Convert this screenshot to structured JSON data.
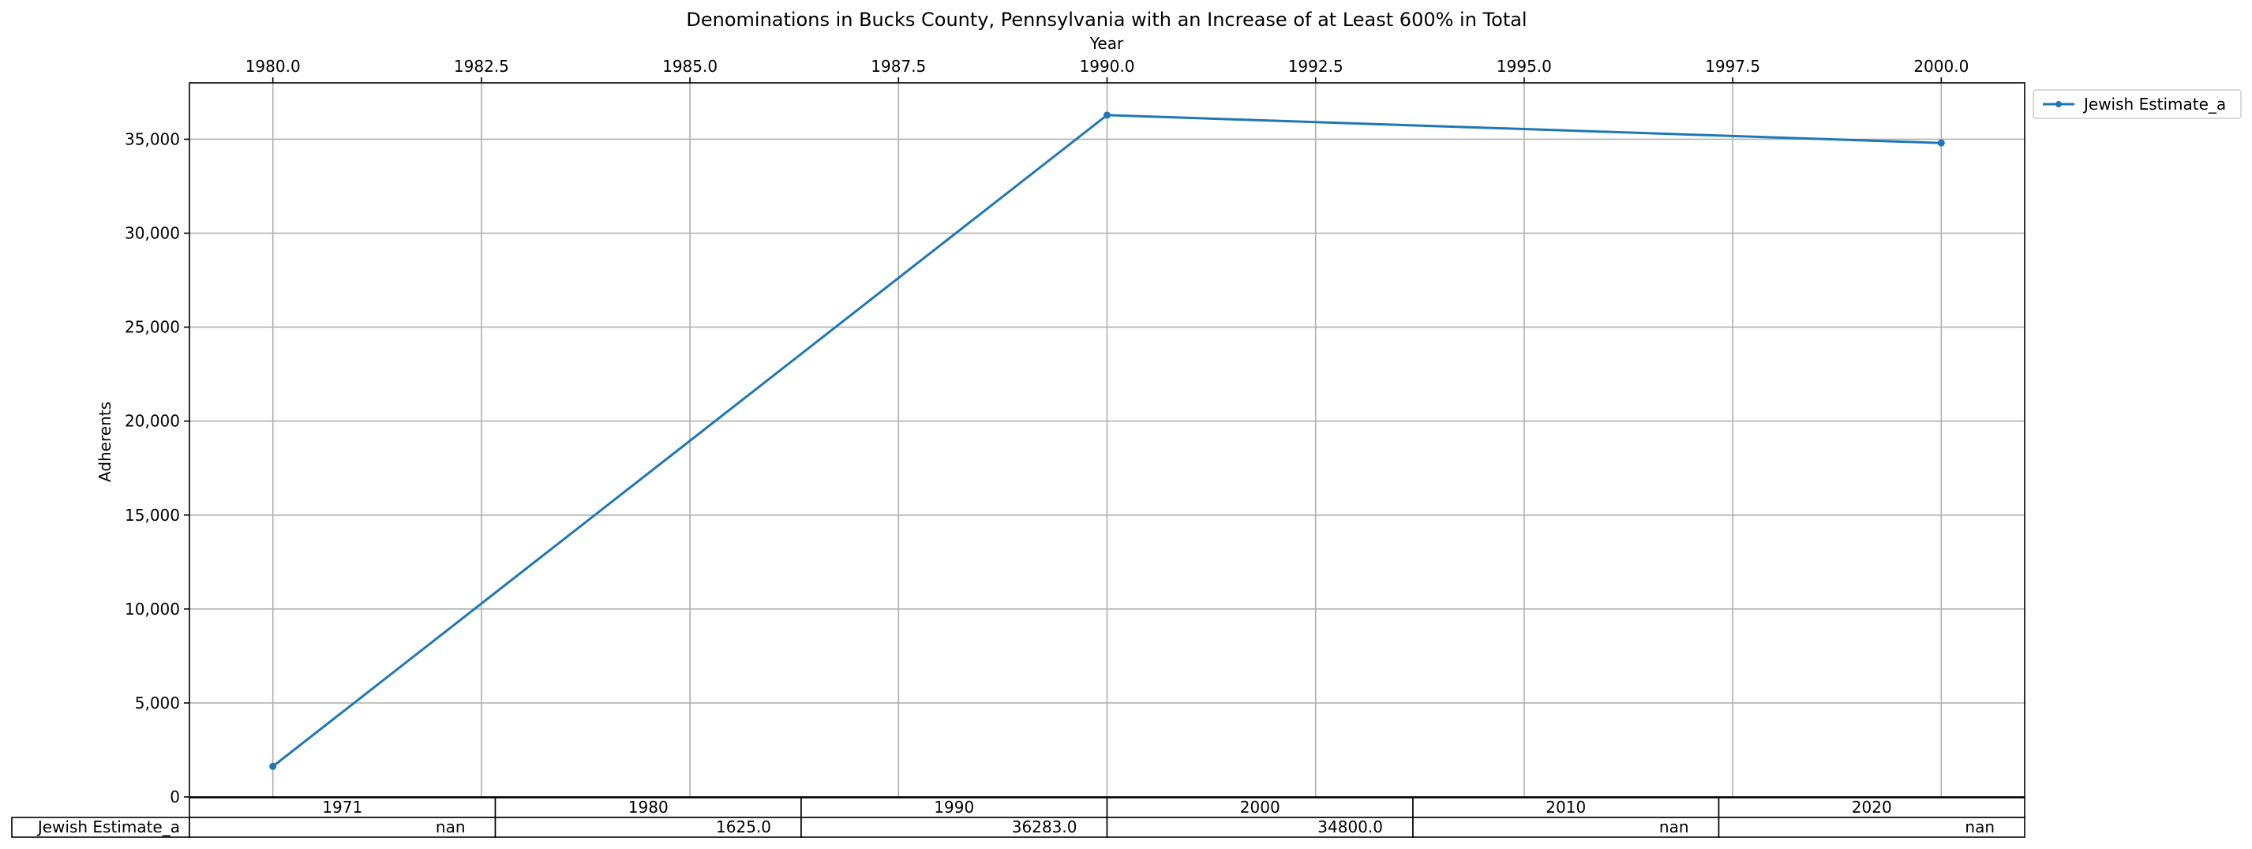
{
  "chart_data": {
    "type": "line",
    "title": "Denominations in Bucks County, Pennsylvania with an Increase of at Least 600% in Total",
    "xlabel": "Year",
    "ylabel": "Adherents",
    "xlim": [
      1979,
      2001
    ],
    "ylim": [
      0,
      38000
    ],
    "x_ticks": [
      1980.0,
      1982.5,
      1985.0,
      1987.5,
      1990.0,
      1992.5,
      1995.0,
      1997.5,
      2000.0
    ],
    "x_tick_labels": [
      "1980.0",
      "1982.5",
      "1985.0",
      "1987.5",
      "1990.0",
      "1992.5",
      "1995.0",
      "1997.5",
      "2000.0"
    ],
    "y_ticks": [
      0,
      5000,
      10000,
      15000,
      20000,
      25000,
      30000,
      35000
    ],
    "y_tick_labels": [
      "0",
      "5,000",
      "10,000",
      "15,000",
      "20,000",
      "25,000",
      "30,000",
      "35,000"
    ],
    "grid": true,
    "x_axis_position": "top",
    "legend_placement": "outside top-right",
    "series": [
      {
        "name": "Jewish Estimate_a",
        "color": "#1f77b4",
        "x": [
          1980,
          1990,
          2000
        ],
        "y": [
          1625,
          36283,
          34800
        ]
      }
    ],
    "table": {
      "columns": [
        "1971",
        "1980",
        "1990",
        "2000",
        "2010",
        "2020"
      ],
      "rows": [
        {
          "label": "Jewish Estimate_a",
          "values": [
            "nan",
            "1625.0",
            "36283.0",
            "34800.0",
            "nan",
            "nan"
          ]
        }
      ]
    }
  }
}
